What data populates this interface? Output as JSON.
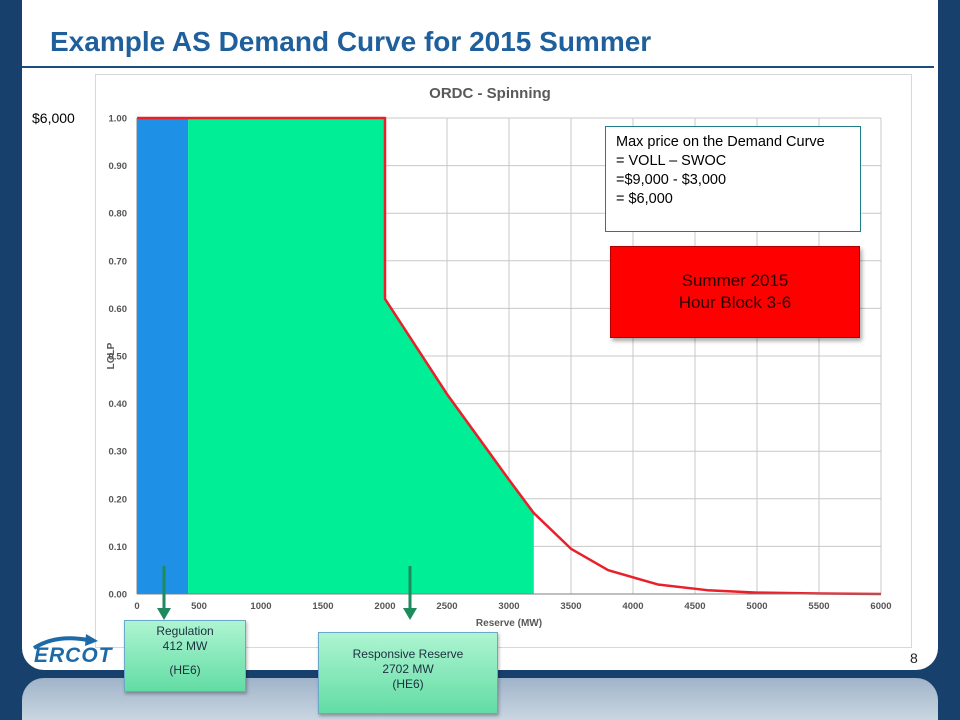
{
  "slide": {
    "title": "Example AS Demand Curve for 2015 Summer",
    "page_number": "8",
    "logo_text": "ERCOT"
  },
  "price_label": "$6,000",
  "note_lines": [
    "Max price on the Demand Curve",
    "= VOLL – SWOC",
    "=$9,000 - $3,000",
    "= $6,000"
  ],
  "season_lines": [
    "Summer 2015",
    "Hour Block 3-6"
  ],
  "callouts": {
    "regulation": {
      "name": "Regulation",
      "mw": "412 MW",
      "block": "(HE6)"
    },
    "responsive": {
      "name": "Responsive Reserve",
      "mw": "2702 MW",
      "block": "(HE6)"
    }
  },
  "colors": {
    "regulation_fill": "#1e90e6",
    "spinning_fill": "#00ee96",
    "curve": "#e8202a",
    "season_box": "#ff0000",
    "title": "#1f5f9c",
    "arrow": "#1e8a5e"
  },
  "chart_data": {
    "type": "area",
    "title": "ORDC - Spinning",
    "xlabel": "Reserve (MW)",
    "ylabel": "LOLP",
    "xlim": [
      0,
      6000
    ],
    "ylim": [
      0,
      1
    ],
    "xticks": [
      0,
      500,
      1000,
      1500,
      2000,
      2500,
      3000,
      3500,
      4000,
      4500,
      5000,
      5500,
      6000
    ],
    "yticks": [
      0,
      0.1,
      0.2,
      0.3,
      0.4,
      0.5,
      0.6,
      0.7,
      0.8,
      0.9,
      1.0
    ],
    "ytick_labels": [
      "0.00",
      "0.10",
      "0.20",
      "0.30",
      "0.40",
      "0.50",
      "0.60",
      "0.70",
      "0.80",
      "0.90",
      "1.00"
    ],
    "grid": true,
    "curve": {
      "x": [
        0,
        2000,
        2000,
        2250,
        2500,
        2750,
        3000,
        3200,
        3500,
        3800,
        4200,
        4600,
        5000,
        5500,
        6000
      ],
      "y": [
        1.0,
        1.0,
        0.62,
        0.52,
        0.42,
        0.33,
        0.24,
        0.17,
        0.095,
        0.05,
        0.02,
        0.008,
        0.003,
        0.001,
        0.0
      ]
    },
    "regions": [
      {
        "label": "Regulation",
        "x0": 0,
        "x1": 412
      },
      {
        "label": "Responsive Reserve",
        "x0": 412,
        "x1": 3200
      }
    ]
  }
}
